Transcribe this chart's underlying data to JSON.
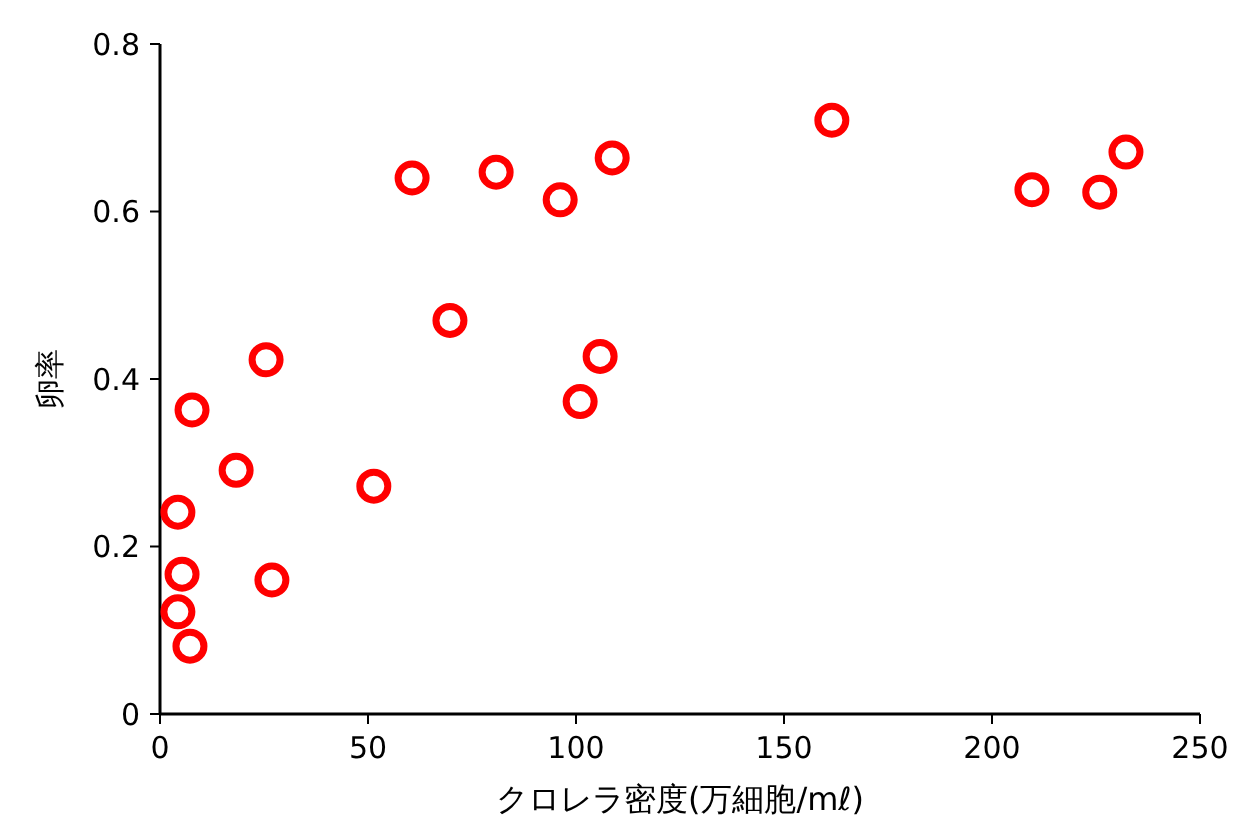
{
  "chart_data": {
    "type": "scatter",
    "xlabel": "クロレラ密度(万細胞/mℓ)",
    "ylabel": "卵率",
    "x": [
      4.3,
      5.3,
      4.3,
      7.2,
      7.7,
      18.3,
      25.5,
      26.9,
      51.4,
      60.6,
      69.7,
      80.8,
      96.2,
      101,
      105.8,
      108.7,
      161.5,
      209.6,
      225.9,
      232.2
    ],
    "series": [
      {
        "color": "#ff0000",
        "values": [
          0.241,
          0.167,
          0.122,
          0.081,
          0.363,
          0.291,
          0.423,
          0.16,
          0.272,
          0.64,
          0.47,
          0.647,
          0.614,
          0.373,
          0.427,
          0.664,
          0.709,
          0.626,
          0.623,
          0.671
        ]
      }
    ],
    "xlim": [
      0,
      250
    ],
    "xticks": [
      0,
      50,
      100,
      150,
      200,
      250
    ],
    "ylim": [
      0,
      0.8
    ],
    "yticks": [
      0,
      0.2,
      0.4,
      0.6,
      0.8
    ],
    "marker": "circle",
    "grid": false
  }
}
